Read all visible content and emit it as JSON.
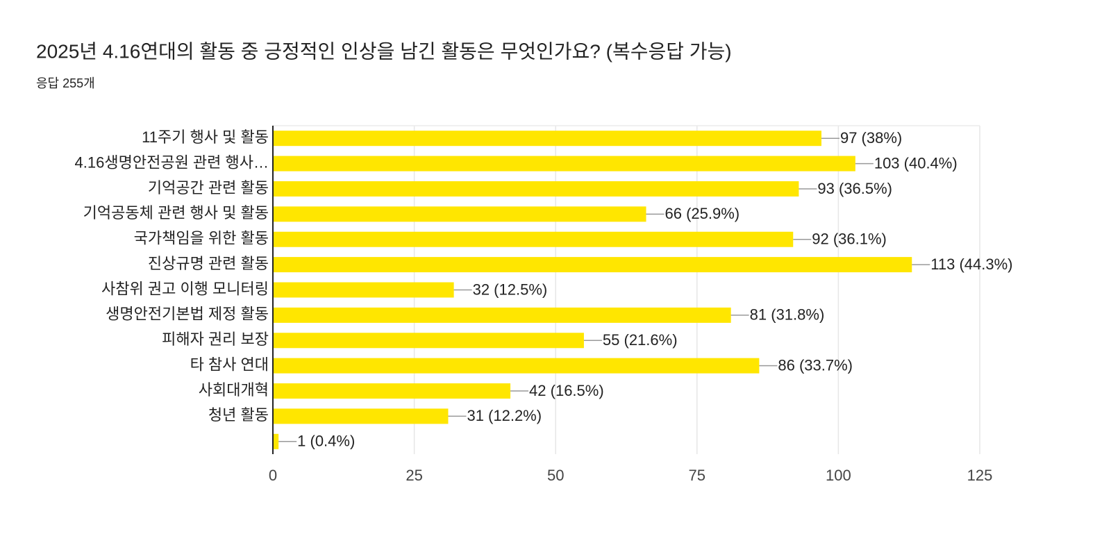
{
  "chart_data": {
    "type": "bar",
    "orientation": "horizontal",
    "title": "2025년 4.16연대의 활동 중 긍정적인 인상을 남긴 활동은 무엇인가요? (복수응답 가능)",
    "subtitle": "응답 255개",
    "categories": [
      "11주기 행사 및 활동",
      "4.16생명안전공원 관련 행사…",
      "기억공간 관련 활동",
      "기억공동체 관련 행사 및 활동",
      "국가책임을 위한 활동",
      "진상규명 관련 활동",
      "사참위 권고 이행 모니터링",
      "생명안전기본법 제정 활동",
      "피해자 권리 보장",
      "타 참사 연대",
      "사회대개혁",
      "청년 활동",
      null
    ],
    "values": [
      97,
      103,
      93,
      66,
      92,
      113,
      32,
      81,
      55,
      86,
      42,
      31,
      1
    ],
    "value_labels": [
      "97 (38%)",
      "103 (40.4%)",
      "93 (36.5%)",
      "66 (25.9%)",
      "92 (36.1%)",
      "113 (44.3%)",
      "32 (12.5%)",
      "81 (31.8%)",
      "55 (21.6%)",
      "86 (33.7%)",
      "42 (16.5%)",
      "31 (12.2%)",
      "1 (0.4%)"
    ],
    "color": "#ffe600",
    "xlim": [
      0,
      125
    ],
    "xticks": [
      0,
      25,
      50,
      75,
      100,
      125
    ],
    "grid": true
  }
}
